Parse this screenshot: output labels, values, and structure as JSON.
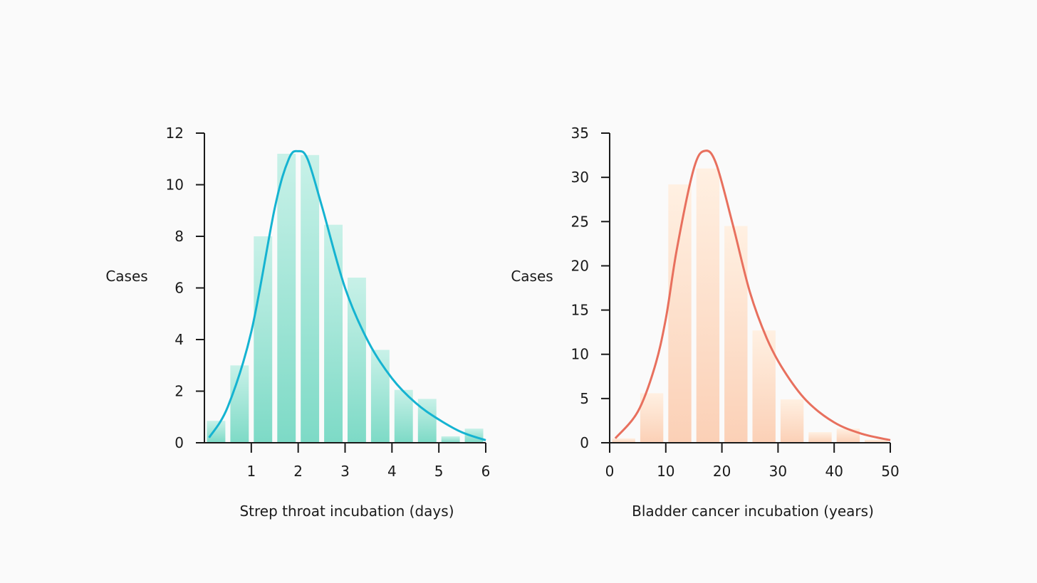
{
  "chart_data": [
    {
      "type": "bar",
      "overlay": "fitted-curve",
      "xlabel": "Strep throat incubation (days)",
      "ylabel": "Cases",
      "xlim": [
        0,
        6
      ],
      "ylim": [
        0,
        12
      ],
      "x_ticks": [
        1,
        2,
        3,
        4,
        5,
        6
      ],
      "y_ticks": [
        0,
        2,
        4,
        6,
        8,
        10,
        12
      ],
      "bin_width": 0.5,
      "bins": [
        {
          "x0": 0.0,
          "x1": 0.5,
          "value": 0.85
        },
        {
          "x0": 0.5,
          "x1": 1.0,
          "value": 3.0
        },
        {
          "x0": 1.0,
          "x1": 1.5,
          "value": 8.0
        },
        {
          "x0": 1.5,
          "x1": 2.0,
          "value": 11.2
        },
        {
          "x0": 2.0,
          "x1": 2.5,
          "value": 11.15
        },
        {
          "x0": 2.5,
          "x1": 3.0,
          "value": 8.45
        },
        {
          "x0": 3.0,
          "x1": 3.5,
          "value": 6.4
        },
        {
          "x0": 3.5,
          "x1": 4.0,
          "value": 3.6
        },
        {
          "x0": 4.0,
          "x1": 4.5,
          "value": 2.05
        },
        {
          "x0": 4.5,
          "x1": 5.0,
          "value": 1.7
        },
        {
          "x0": 5.0,
          "x1": 5.5,
          "value": 0.25
        },
        {
          "x0": 5.5,
          "x1": 6.0,
          "value": 0.55
        }
      ],
      "curve": {
        "x": [
          0.1,
          0.5,
          1.0,
          1.5,
          1.8,
          2.0,
          2.2,
          2.5,
          3.0,
          3.5,
          4.0,
          4.5,
          5.0,
          5.5,
          6.0
        ],
        "y": [
          0.2,
          1.4,
          4.3,
          9.1,
          11.0,
          11.3,
          11.0,
          9.2,
          6.0,
          3.9,
          2.5,
          1.55,
          0.9,
          0.4,
          0.1
        ]
      },
      "colors": {
        "bar": "#8fe3d0",
        "curve": "#15b3d1",
        "axis": "#1a1a1a"
      }
    },
    {
      "type": "bar",
      "overlay": "fitted-curve",
      "xlabel": "Bladder cancer incubation (years)",
      "ylabel": "Cases",
      "xlim": [
        0,
        50
      ],
      "ylim": [
        0,
        35
      ],
      "x_ticks": [
        0,
        10,
        20,
        30,
        40,
        50
      ],
      "y_ticks": [
        0,
        5,
        10,
        15,
        20,
        25,
        30,
        35
      ],
      "bin_width": 5,
      "bins": [
        {
          "x0": 0,
          "x1": 5,
          "value": 0.5
        },
        {
          "x0": 5,
          "x1": 10,
          "value": 5.6
        },
        {
          "x0": 10,
          "x1": 15,
          "value": 29.2
        },
        {
          "x0": 15,
          "x1": 20,
          "value": 31.0
        },
        {
          "x0": 20,
          "x1": 25,
          "value": 24.5
        },
        {
          "x0": 25,
          "x1": 30,
          "value": 12.7
        },
        {
          "x0": 30,
          "x1": 35,
          "value": 4.9
        },
        {
          "x0": 35,
          "x1": 40,
          "value": 1.2
        },
        {
          "x0": 40,
          "x1": 45,
          "value": 1.6
        },
        {
          "x0": 45,
          "x1": 50,
          "value": 0.35
        }
      ],
      "curve": {
        "x": [
          1,
          5,
          8,
          10,
          12,
          15,
          17,
          19,
          22,
          25,
          28,
          31,
          35,
          40,
          45,
          50
        ],
        "y": [
          0.5,
          3.5,
          8.5,
          14.0,
          22.0,
          31.0,
          33.0,
          31.5,
          24.5,
          17.0,
          11.8,
          8.2,
          4.8,
          2.3,
          1.0,
          0.3
        ]
      },
      "colors": {
        "bar": "#fcd7bd",
        "curve": "#e8705e",
        "axis": "#1a1a1a"
      }
    }
  ]
}
